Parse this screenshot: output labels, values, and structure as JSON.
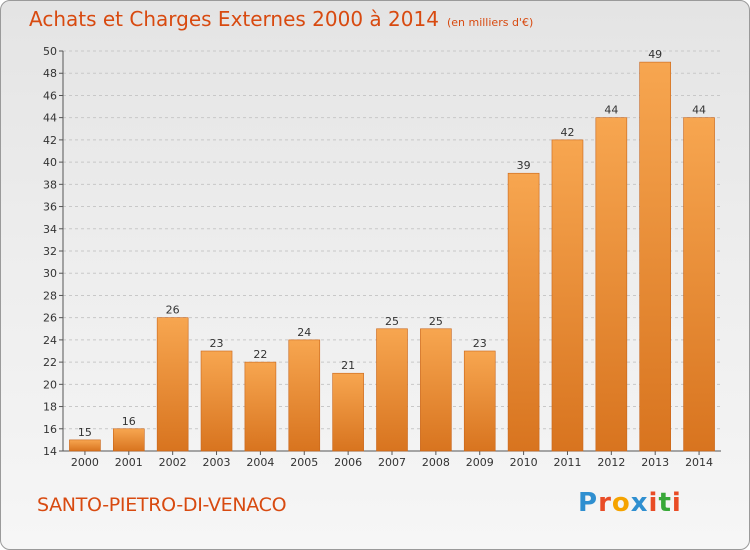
{
  "header": {
    "title": "Achats et Charges Externes 2000 à 2014",
    "unit": "(en milliers d'€)"
  },
  "footer": {
    "commune": "SANTO-PIETRO-DI-VENACO",
    "logo_letters": [
      "P",
      "r",
      "o",
      "x",
      "i",
      "t",
      "i"
    ],
    "logo_colors": [
      "#2f8fd0",
      "#e94c26",
      "#f5a300",
      "#2f8fd0",
      "#e94c26",
      "#38a838",
      "#e94c26"
    ]
  },
  "colors": {
    "bar_light": "#f7a650",
    "bar_dark": "#d8741f",
    "title": "#d84a10",
    "grid": "#c8c8c8"
  },
  "chart_data": {
    "type": "bar",
    "title": "Achats et Charges Externes 2000 à 2014",
    "subtitle": "(en milliers d'€)",
    "categories": [
      "2000",
      "2001",
      "2002",
      "2003",
      "2004",
      "2005",
      "2006",
      "2007",
      "2008",
      "2009",
      "2010",
      "2011",
      "2012",
      "2013",
      "2014"
    ],
    "values": [
      15,
      16,
      26,
      23,
      22,
      24,
      21,
      25,
      25,
      23,
      39,
      42,
      44,
      49,
      44
    ],
    "ylim": [
      14,
      50
    ],
    "yticks": [
      14,
      16,
      18,
      20,
      22,
      24,
      26,
      28,
      30,
      32,
      34,
      36,
      38,
      40,
      42,
      44,
      46,
      48,
      50
    ],
    "grid": true,
    "xlabel": "",
    "ylabel": ""
  }
}
